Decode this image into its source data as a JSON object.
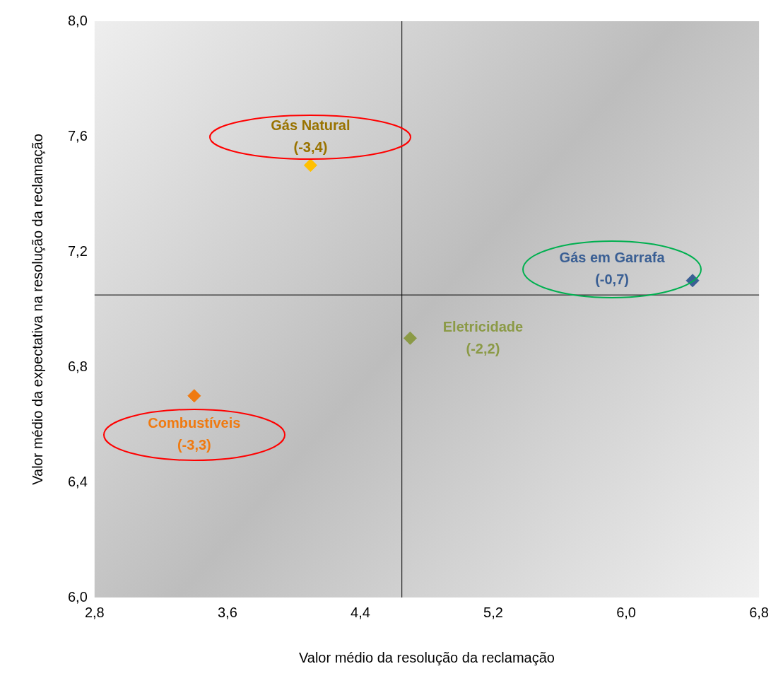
{
  "chart_data": {
    "type": "scatter",
    "xlabel": "Valor médio da resolução da reclamação",
    "ylabel": "Valor médio da expectativa na resolução da reclamação",
    "series": [
      {
        "name": "Gás Natural",
        "color": "#ffc000",
        "x": [
          4.1
        ],
        "values": [
          7.5
        ]
      },
      {
        "name": "Gás em Garrafa",
        "color": "#3a5f94",
        "x": [
          6.4
        ],
        "values": [
          7.1
        ]
      },
      {
        "name": "Eletricidade",
        "color": "#8b9a46",
        "x": [
          4.7
        ],
        "values": [
          6.9
        ]
      },
      {
        "name": "Combustíveis",
        "color": "#f07a10",
        "x": [
          3.4
        ],
        "values": [
          6.7
        ]
      }
    ],
    "annotations": [
      "(-3,4)",
      "(-0,7)",
      "(-2,2)",
      "(-3,3)"
    ],
    "xlim": [
      2.8,
      6.8
    ],
    "xticks": [
      {
        "value": 2.8,
        "label": "2,8"
      },
      {
        "value": 3.6,
        "label": "3,6"
      },
      {
        "value": 4.4,
        "label": "4,4"
      },
      {
        "value": 5.2,
        "label": "5,2"
      },
      {
        "value": 6.0,
        "label": "6,0"
      },
      {
        "value": 6.8,
        "label": "6,8"
      }
    ],
    "ylim": [
      6.0,
      8.0
    ],
    "yticks": [
      {
        "value": 6.0,
        "label": "6,0"
      },
      {
        "value": 6.4,
        "label": "6,4"
      },
      {
        "value": 6.8,
        "label": "6,8"
      },
      {
        "value": 7.2,
        "label": "7,2"
      },
      {
        "value": 7.6,
        "label": "7,6"
      },
      {
        "value": 8.0,
        "label": "8,0"
      }
    ],
    "ref_lines": [
      {
        "axis": "x",
        "value": 4.65,
        "color": "#000000"
      },
      {
        "axis": "y",
        "value": 7.05,
        "color": "#000000"
      }
    ],
    "grid": false,
    "legend": false,
    "marker": "diamond"
  }
}
